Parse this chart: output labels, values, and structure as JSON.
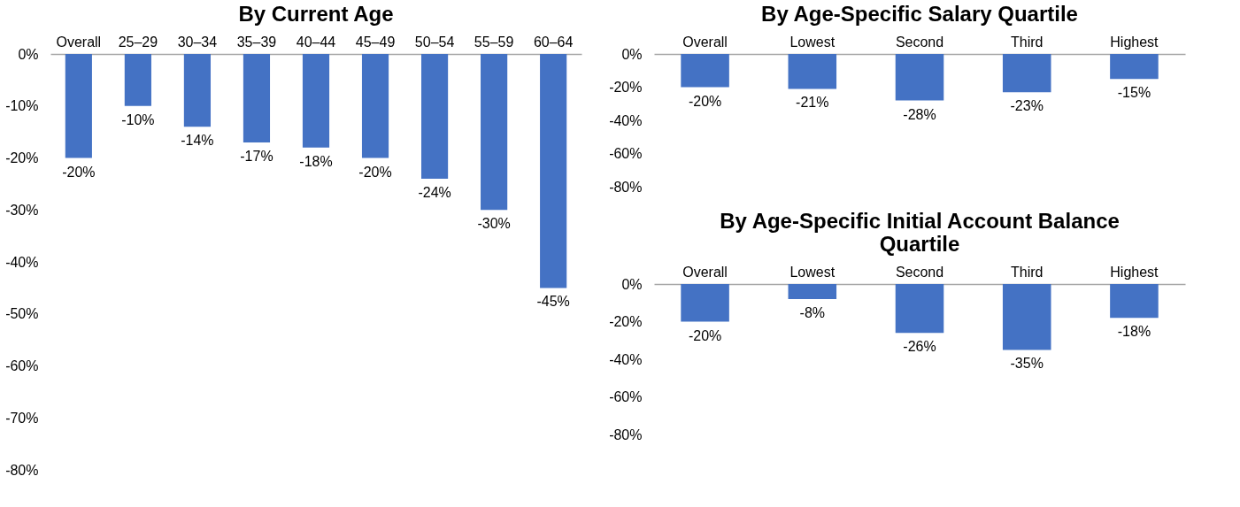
{
  "chart_data": [
    {
      "type": "bar",
      "title": "By Current Age",
      "categories": [
        "Overall",
        "25–29",
        "30–34",
        "35–39",
        "40–44",
        "45–49",
        "50–54",
        "55–59",
        "60–64"
      ],
      "values": [
        -20,
        -10,
        -14,
        -17,
        -18,
        -20,
        -24,
        -30,
        -45
      ],
      "value_labels": [
        "-20%",
        "-10%",
        "-14%",
        "-17%",
        "-18%",
        "-20%",
        "-24%",
        "-30%",
        "-45%"
      ],
      "color": "#4472c4",
      "ylim": [
        -80,
        0
      ],
      "yticks": [
        {
          "value": 0,
          "label": "0%"
        },
        {
          "value": -10,
          "label": "-10%"
        },
        {
          "value": -20,
          "label": "-20%"
        },
        {
          "value": -30,
          "label": "-30%"
        },
        {
          "value": -40,
          "label": "-40%"
        },
        {
          "value": -50,
          "label": "-50%"
        },
        {
          "value": -60,
          "label": "-60%"
        },
        {
          "value": -70,
          "label": "-70%"
        },
        {
          "value": -80,
          "label": "-80%"
        }
      ],
      "grid": false,
      "legend": false
    },
    {
      "type": "bar",
      "title": "By Age-Specific Salary Quartile",
      "categories": [
        "Overall",
        "Lowest",
        "Second",
        "Third",
        "Highest"
      ],
      "values": [
        -20,
        -21,
        -28,
        -23,
        -15
      ],
      "value_labels": [
        "-20%",
        "-21%",
        "-28%",
        "-23%",
        "-15%"
      ],
      "color": "#4472c4",
      "ylim": [
        -80,
        0
      ],
      "yticks": [
        {
          "value": 0,
          "label": "0%"
        },
        {
          "value": -20,
          "label": "-20%"
        },
        {
          "value": -40,
          "label": "-40%"
        },
        {
          "value": -60,
          "label": "-60%"
        },
        {
          "value": -80,
          "label": "-80%"
        }
      ],
      "grid": false,
      "legend": false
    },
    {
      "type": "bar",
      "title": "By Age-Specific Initial Account Balance Quartile",
      "categories": [
        "Overall",
        "Lowest",
        "Second",
        "Third",
        "Highest"
      ],
      "values": [
        -20,
        -8,
        -26,
        -35,
        -18
      ],
      "value_labels": [
        "-20%",
        "-8%",
        "-26%",
        "-35%",
        "-18%"
      ],
      "color": "#4472c4",
      "ylim": [
        -80,
        0
      ],
      "yticks": [
        {
          "value": 0,
          "label": "0%"
        },
        {
          "value": -20,
          "label": "-20%"
        },
        {
          "value": -40,
          "label": "-40%"
        },
        {
          "value": -60,
          "label": "-60%"
        },
        {
          "value": -80,
          "label": "-80%"
        }
      ],
      "grid": false,
      "legend": false
    }
  ]
}
